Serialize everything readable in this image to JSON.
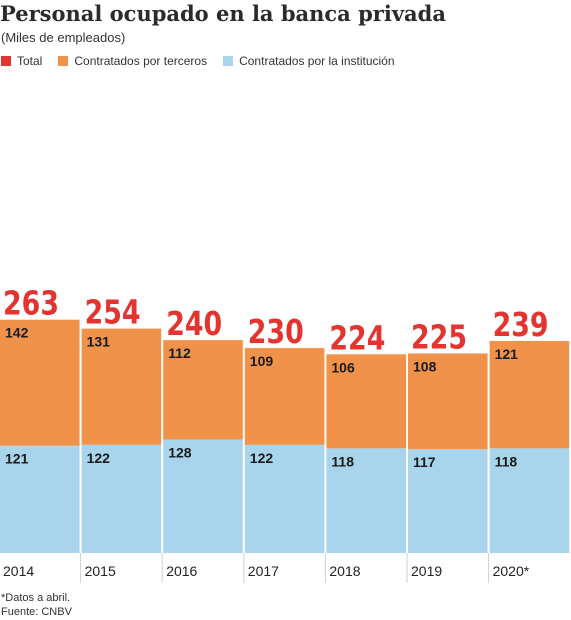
{
  "title": "Personal ocupado en la banca privada",
  "subtitle": "(Miles de empleados)",
  "colors": {
    "total": "#e3342f",
    "terceros": "#f0924a",
    "institucion": "#a8d4ec"
  },
  "legend": [
    {
      "label": "Total",
      "color": "#e3342f"
    },
    {
      "label": "Contratados por terceros",
      "color": "#f0924a"
    },
    {
      "label": "Contratados por la institución",
      "color": "#a8d4ec"
    }
  ],
  "chart_data": {
    "type": "bar",
    "stacked": true,
    "categories": [
      "2014",
      "2015",
      "2016",
      "2017",
      "2018",
      "2019",
      "2020*"
    ],
    "series": [
      {
        "name": "Contratados por la institución",
        "values": [
          121,
          122,
          128,
          122,
          118,
          117,
          118
        ]
      },
      {
        "name": "Contratados por terceros",
        "values": [
          142,
          131,
          112,
          109,
          106,
          108,
          121
        ]
      }
    ],
    "totals": [
      263,
      254,
      240,
      230,
      224,
      225,
      239
    ],
    "title": "Personal ocupado en la banca privada",
    "subtitle": "(Miles de empleados)",
    "xlabel": "",
    "ylabel": ""
  },
  "footnotes": [
    "*Datos a abril.",
    "Fuente: CNBV"
  ]
}
